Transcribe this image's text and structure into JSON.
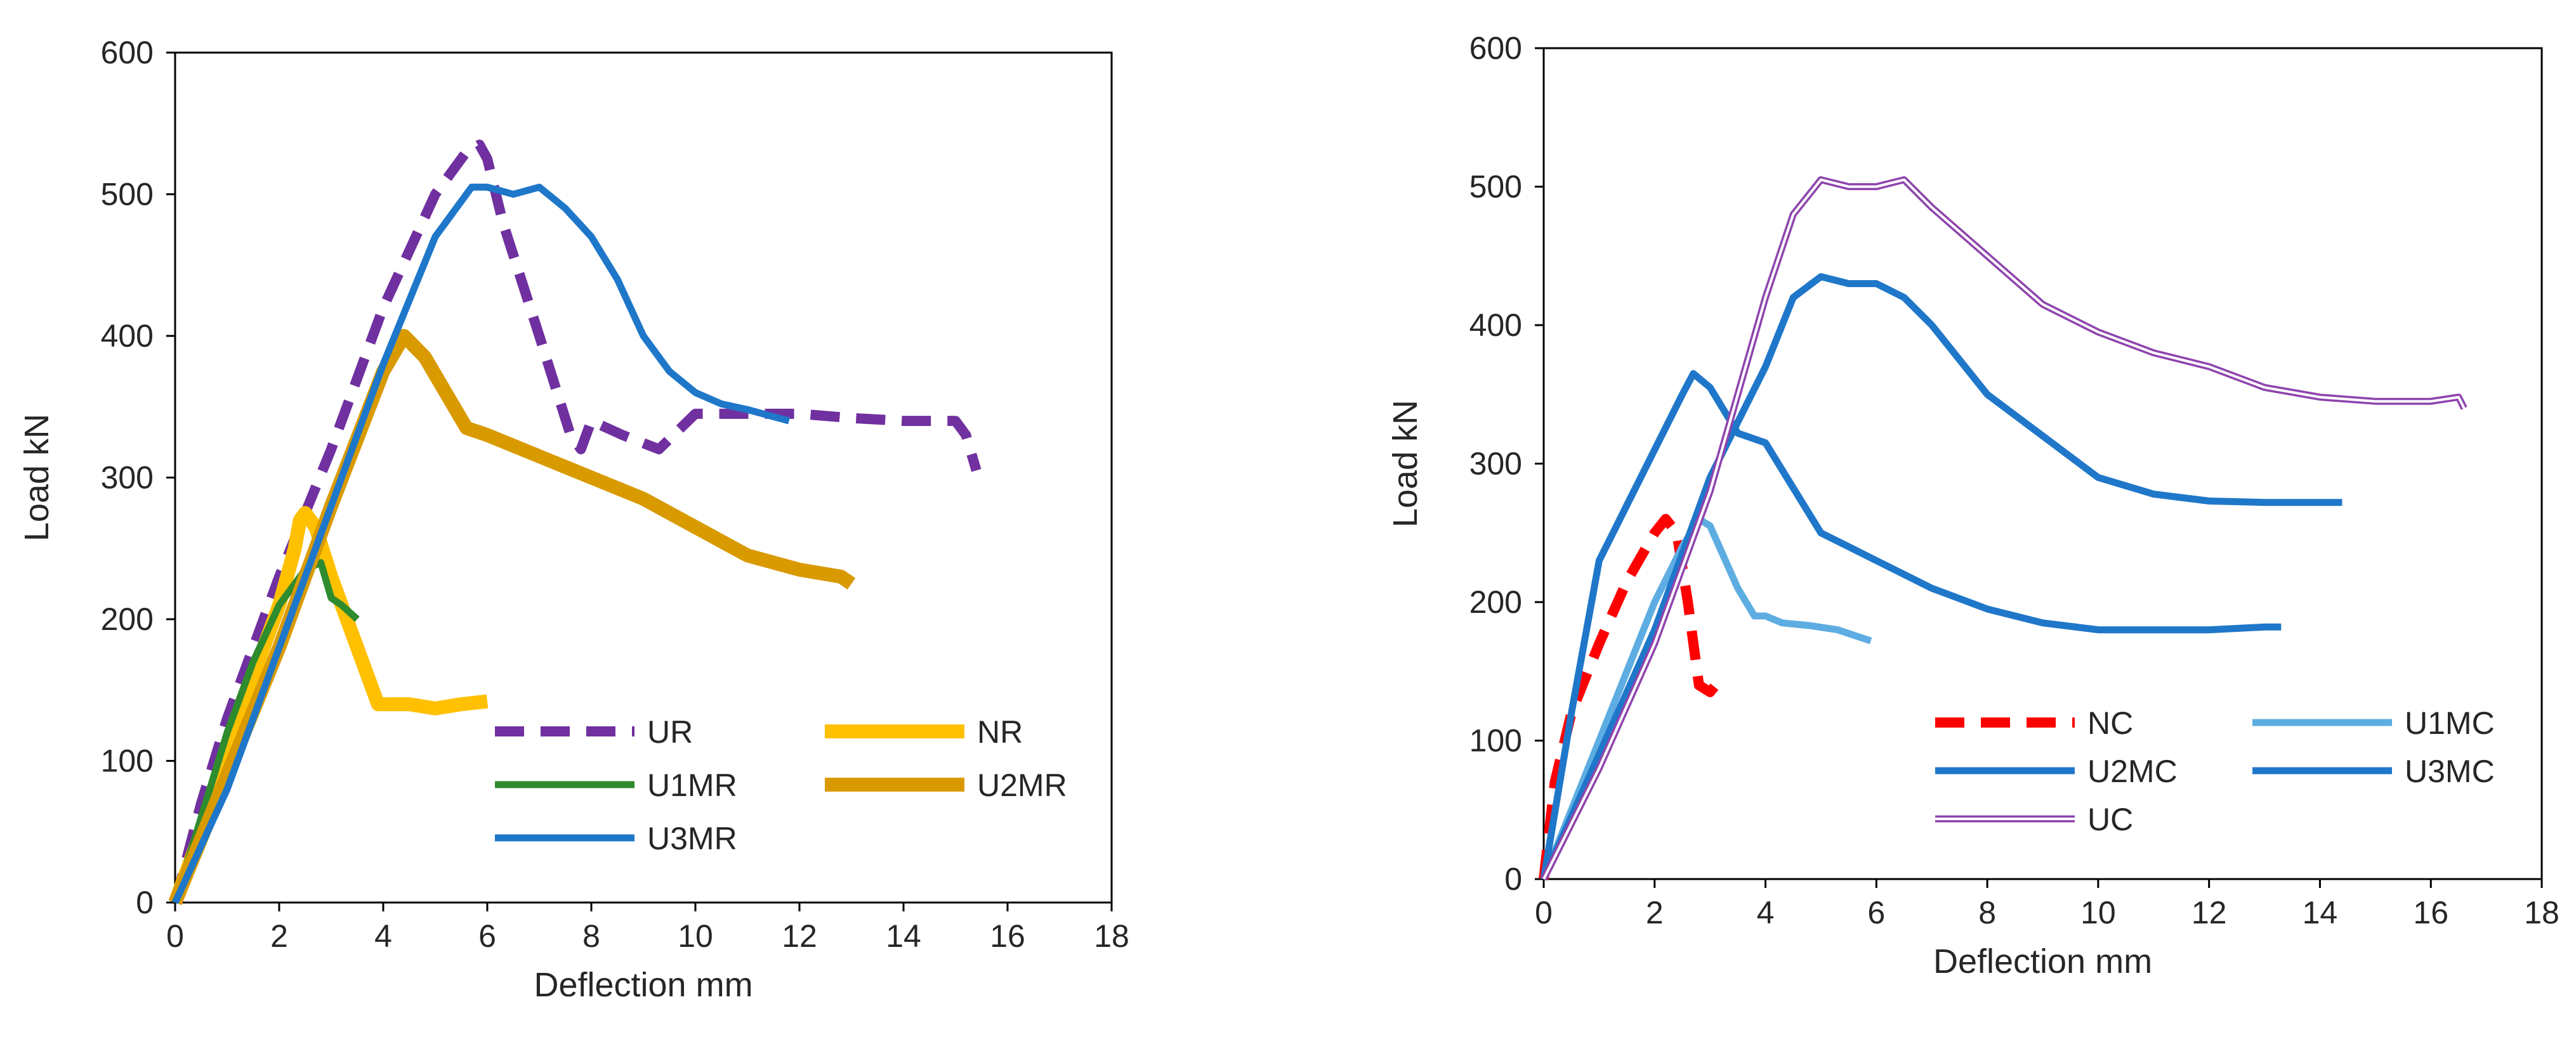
{
  "chart_data": [
    {
      "type": "line",
      "xlabel": "Deflection mm",
      "ylabel": "Load kN",
      "xlim": [
        0,
        18
      ],
      "ylim": [
        0,
        600
      ],
      "xticks": [
        "0",
        "2",
        "4",
        "6",
        "8",
        "10",
        "12",
        "14",
        "16",
        "18"
      ],
      "yticks": [
        "0",
        "100",
        "200",
        "300",
        "400",
        "500",
        "600"
      ],
      "grid": false,
      "legend_position": "bottom-right",
      "series": [
        {
          "name": "UR",
          "color": "#7030A0",
          "style": "dashed",
          "x": [
            0,
            0.5,
            1,
            2,
            3,
            4,
            5,
            5.6,
            5.85,
            6,
            6.3,
            7,
            7.6,
            7.8,
            8,
            8.6,
            9.3,
            10,
            11,
            12,
            13,
            14,
            15,
            15.2,
            15.4
          ],
          "y": [
            0,
            70,
            130,
            230,
            320,
            420,
            500,
            530,
            535,
            525,
            480,
            400,
            330,
            320,
            340,
            330,
            320,
            345,
            345,
            345,
            342,
            340,
            340,
            330,
            305
          ]
        },
        {
          "name": "NR",
          "color": "#FFC000",
          "style": "solid",
          "x": [
            0,
            0.5,
            1,
            1.5,
            2,
            2.3,
            2.4,
            2.5,
            2.7,
            3,
            3.5,
            3.9,
            4.5,
            5,
            5.5,
            6
          ],
          "y": [
            0,
            50,
            110,
            160,
            210,
            250,
            270,
            275,
            265,
            230,
            180,
            140,
            140,
            137,
            140,
            142
          ]
        },
        {
          "name": "U1MR",
          "color": "#2E8B2E",
          "style": "solid",
          "x": [
            0,
            0.5,
            1,
            1.5,
            2,
            2.5,
            2.8,
            3,
            3.2,
            3.5
          ],
          "y": [
            0,
            60,
            120,
            170,
            210,
            235,
            240,
            215,
            210,
            200
          ]
        },
        {
          "name": "U2MR",
          "color": "#D99A00",
          "style": "solid",
          "x": [
            0,
            1,
            2,
            3,
            4,
            4.4,
            4.8,
            5.2,
            5.6,
            6,
            7,
            8,
            9,
            10,
            11,
            12,
            12.8,
            13
          ],
          "y": [
            0,
            90,
            180,
            280,
            375,
            400,
            385,
            360,
            335,
            330,
            315,
            300,
            285,
            265,
            245,
            235,
            230,
            225
          ]
        },
        {
          "name": "U3MR",
          "color": "#1F77C9",
          "style": "solid",
          "x": [
            0,
            1,
            2,
            3,
            4,
            5,
            5.7,
            6,
            6.5,
            7,
            7.5,
            8,
            8.5,
            9,
            9.5,
            10,
            10.5,
            11,
            11.5,
            11.8
          ],
          "y": [
            0,
            80,
            180,
            280,
            380,
            470,
            505,
            505,
            500,
            505,
            490,
            470,
            440,
            400,
            375,
            360,
            352,
            348,
            343,
            340
          ]
        }
      ]
    },
    {
      "type": "line",
      "xlabel": "Deflection mm",
      "ylabel": "Load kN",
      "xlim": [
        0,
        18
      ],
      "ylim": [
        0,
        600
      ],
      "xticks": [
        "0",
        "2",
        "4",
        "6",
        "8",
        "10",
        "12",
        "14",
        "16",
        "18"
      ],
      "yticks": [
        "0",
        "100",
        "200",
        "300",
        "400",
        "500",
        "600"
      ],
      "grid": false,
      "legend_position": "bottom-right",
      "series": [
        {
          "name": "NC",
          "color": "#FF0000",
          "style": "dashed",
          "x": [
            0,
            0.2,
            0.5,
            1,
            1.5,
            2,
            2.2,
            2.4,
            2.6,
            2.8,
            3,
            3.2
          ],
          "y": [
            0,
            70,
            120,
            170,
            215,
            250,
            260,
            250,
            200,
            140,
            135,
            145
          ]
        },
        {
          "name": "U1MC",
          "color": "#5DADE2",
          "style": "solid",
          "x": [
            0,
            0.5,
            1,
            1.5,
            2,
            2.5,
            2.8,
            3,
            3.5,
            3.8,
            4,
            4.3,
            4.8,
            5.3,
            5.9
          ],
          "y": [
            0,
            50,
            100,
            150,
            200,
            240,
            260,
            255,
            210,
            190,
            190,
            185,
            183,
            180,
            172
          ]
        },
        {
          "name": "U2MC",
          "color": "#1F77C9",
          "style": "solid",
          "x": [
            0,
            0.5,
            1,
            1.5,
            2,
            2.5,
            2.7,
            3,
            3.5,
            4,
            5,
            5.5,
            6,
            7,
            8,
            9,
            10,
            11,
            12,
            13,
            13.3
          ],
          "y": [
            0,
            120,
            230,
            270,
            310,
            350,
            365,
            355,
            322,
            315,
            250,
            240,
            230,
            210,
            195,
            185,
            180,
            180,
            180,
            182,
            182
          ]
        },
        {
          "name": "U3MC",
          "color": "#1F77C9",
          "style": "solid",
          "x": [
            0,
            1,
            2,
            3,
            4,
            4.5,
            5,
            5.5,
            6,
            6.5,
            7,
            8,
            9,
            10,
            11,
            12,
            13,
            14,
            14.4
          ],
          "y": [
            0,
            90,
            180,
            290,
            370,
            420,
            435,
            430,
            430,
            420,
            400,
            350,
            320,
            290,
            278,
            273,
            272,
            272,
            272
          ]
        },
        {
          "name": "UC",
          "color": "#8E44AD",
          "style": "double",
          "x": [
            0,
            1,
            2,
            3,
            4,
            4.5,
            5,
            5.5,
            6,
            6.5,
            7,
            8,
            9,
            10,
            11,
            12,
            13,
            14,
            15,
            16,
            16.5,
            16.6
          ],
          "y": [
            0,
            80,
            170,
            280,
            420,
            480,
            505,
            500,
            500,
            505,
            485,
            450,
            415,
            395,
            380,
            370,
            355,
            348,
            345,
            345,
            348,
            340
          ]
        }
      ]
    }
  ]
}
